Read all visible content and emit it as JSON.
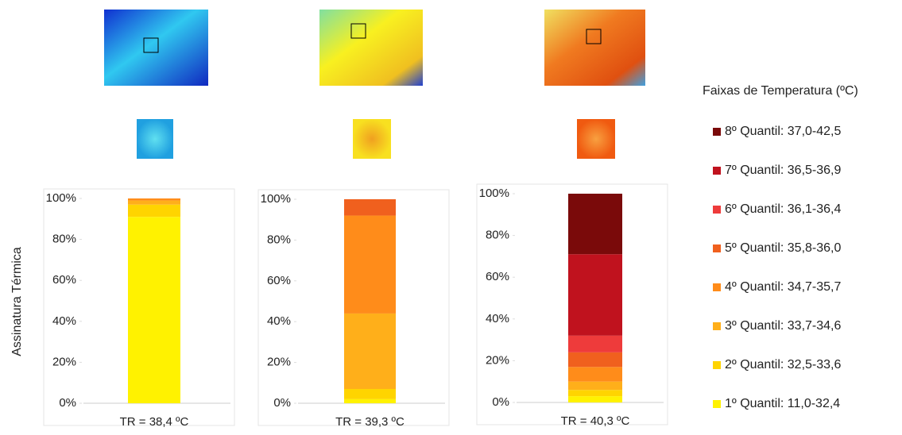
{
  "chart_data": {
    "type": "bar",
    "stacked": true,
    "y_label": "Assinatura Térmica",
    "legend_title": "Faixas de Temperatura (ºC)",
    "categories": [
      "TR = 38,4 ºC",
      "TR = 39,3 ºC",
      "TR = 40,3 ºC"
    ],
    "series": [
      {
        "name": "1º Quantil: 11,0-32,4",
        "color": "#fff200",
        "values": [
          91,
          2,
          3
        ]
      },
      {
        "name": "2º Quantil: 32,5-33,6",
        "color": "#ffd400",
        "values": [
          6,
          5,
          3
        ]
      },
      {
        "name": "3º Quantil: 33,7-34,6",
        "color": "#ffaf1a",
        "values": [
          2,
          37,
          4
        ]
      },
      {
        "name": "4º Quantil: 34,7-35,7",
        "color": "#ff8c1a",
        "values": [
          1,
          48,
          7
        ]
      },
      {
        "name": "5º Quantil: 35,8-36,0",
        "color": "#f0601e",
        "values": [
          0,
          8,
          7
        ]
      },
      {
        "name": "6º Quantil: 36,1-36,4",
        "color": "#ee3b3b",
        "values": [
          0,
          0,
          8
        ]
      },
      {
        "name": "7º Quantil: 36,5-36,9",
        "color": "#c0121e",
        "values": [
          0,
          0,
          39
        ]
      },
      {
        "name": "8º Quantil: 37,0-42,5",
        "color": "#7a0a0a",
        "values": [
          0,
          0,
          29
        ]
      }
    ],
    "ylim": [
      0,
      100
    ],
    "yticks": [
      {
        "value": 0,
        "label": "0%"
      },
      {
        "value": 20,
        "label": "20%"
      },
      {
        "value": 40,
        "label": "40%"
      },
      {
        "value": 60,
        "label": "60%"
      },
      {
        "value": 80,
        "label": "80%"
      },
      {
        "value": 100,
        "label": "100%"
      }
    ]
  }
}
